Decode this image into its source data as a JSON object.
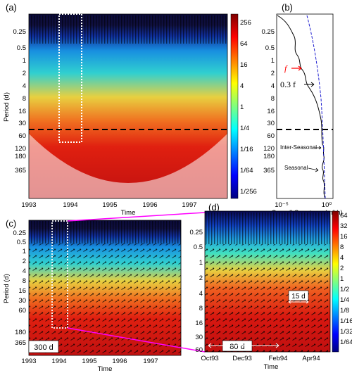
{
  "figure": {
    "panel_labels": [
      "(a)",
      "(b)",
      "(c)",
      "(d)"
    ],
    "panel_a": {
      "y_label": "Period (d)",
      "x_label": "Time",
      "y_ticks": [
        "0.25",
        "0.5",
        "1",
        "2",
        "4",
        "8",
        "16",
        "30",
        "60",
        "120",
        "180",
        "365"
      ],
      "x_ticks": [
        "1993",
        "1994",
        "1995",
        "1996",
        "1997"
      ],
      "colorbar_ticks": [
        "256",
        "64",
        "16",
        "4",
        "1",
        "1/4",
        "1/16",
        "1/64",
        "1/256"
      ]
    },
    "panel_b": {
      "x_label": "Overall Spectrum (m² h)",
      "x_ticks": [
        "10⁻⁵",
        "10⁰"
      ],
      "y_ticks": [
        "0.25",
        "0.5",
        "1",
        "2",
        "4",
        "8",
        "16",
        "30",
        "60",
        "120",
        "180",
        "365"
      ],
      "annotations": {
        "f": "f",
        "point3f": "0.3 f",
        "inter_seasonal": "Inter-Seasonal",
        "seasonal": "Seasonal"
      }
    },
    "panel_c": {
      "y_label": "Period (d)",
      "x_label": "Time",
      "y_ticks": [
        "0.25",
        "0.5",
        "1",
        "2",
        "4",
        "8",
        "16",
        "30",
        "60",
        "180",
        "365"
      ],
      "x_ticks": [
        "1993",
        "1994",
        "1995",
        "1996",
        "1997"
      ],
      "box_label": "300 d"
    },
    "panel_d": {
      "x_label": "Time",
      "x_ticks": [
        "Oct93",
        "Dec93",
        "Feb94",
        "Apr94"
      ],
      "y_ticks": [
        "0.25",
        "0.5",
        "1",
        "2",
        "4",
        "8",
        "16",
        "30",
        "60"
      ],
      "colorbar_ticks": [
        "64",
        "32",
        "16",
        "8",
        "4",
        "2",
        "1",
        "1/2",
        "1/4",
        "1/8",
        "1/16",
        "1/32",
        "1/64"
      ],
      "label_15d": "15 d",
      "label_80d": "80 d"
    },
    "colors": {
      "cmap": [
        "#00007f",
        "#0000ff",
        "#007fff",
        "#00ffff",
        "#7fff7f",
        "#ffff00",
        "#ff7f00",
        "#ff0000",
        "#7f0000"
      ],
      "magenta": "#ff00ff",
      "red_annotation": "#ff0000",
      "blue_dashed": "#1f1fd0",
      "label_box_text": "#0000cc"
    }
  }
}
